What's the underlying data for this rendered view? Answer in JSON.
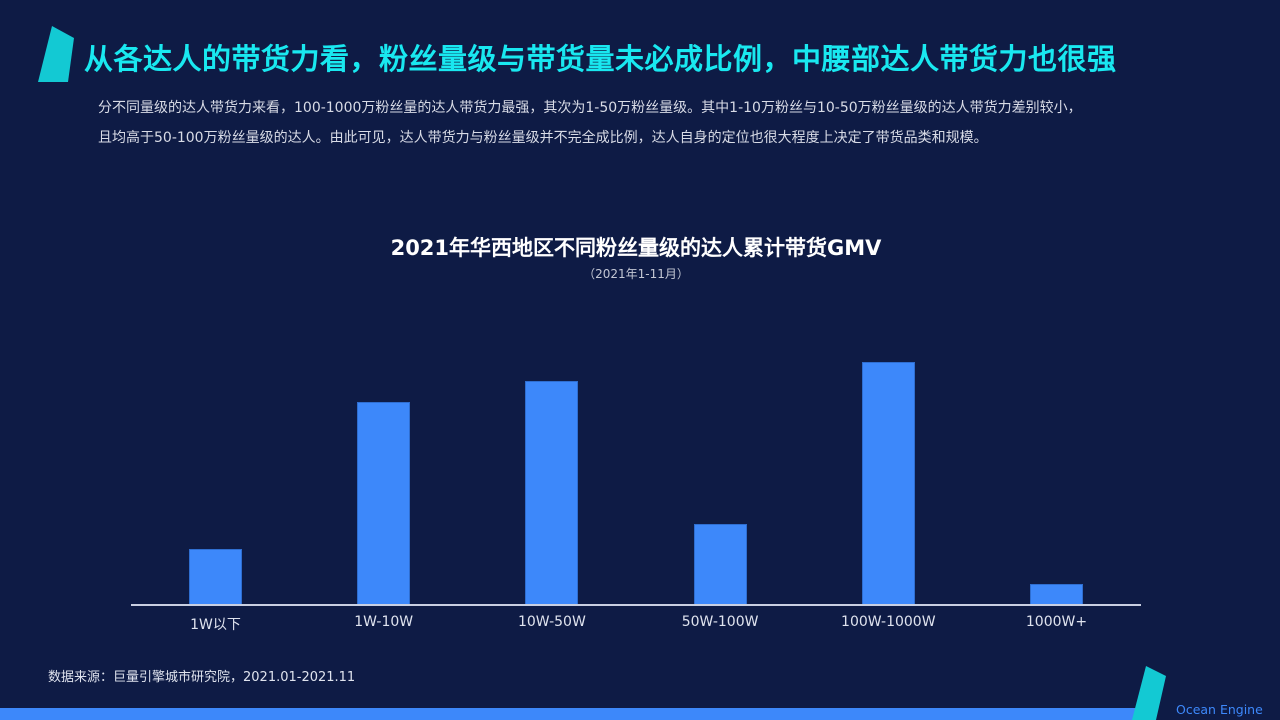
{
  "slide": {
    "headline": "从各达人的带货力看，粉丝量级与带货量未必成比例，中腰部达人带货力也很强",
    "summary_lines": [
      "分不同量级的达人带货力来看，100-1000万粉丝量的达人带货力最强，其次为1-50万粉丝量级。其中1-10万粉丝与10-50万粉丝量级的达人带货力差别较小，",
      "且均高于50-100万粉丝量级的达人。由此可见，达人带货力与粉丝量级并不完全成比例，达人自身的定位也很大程度上决定了带货品类和规模。"
    ],
    "source": "数据来源：巨量引擎城市研究院，2021.01-2021.11",
    "brand": "Ocean Engine"
  },
  "colors": {
    "background": "#0e1b45",
    "headline": "#19e8f0",
    "bar": "#3d88fa",
    "accent": "#13c9d3",
    "axis": "#c9cfe2"
  },
  "chart_data": {
    "type": "bar",
    "title": "2021年华西地区不同粉丝量级的达人累计带货GMV",
    "subtitle": "（2021年1-11月）",
    "xlabel": "",
    "ylabel": "",
    "y_axis_visible": false,
    "grid": false,
    "legend": null,
    "value_units": "relative bar height (px), no scale shown",
    "categories": [
      "1W以下",
      "1W-10W",
      "10W-50W",
      "50W-100W",
      "100W-1000W",
      "1000W+"
    ],
    "values": [
      56,
      203,
      224,
      81,
      243,
      21
    ],
    "ylim": [
      0,
      305
    ]
  }
}
